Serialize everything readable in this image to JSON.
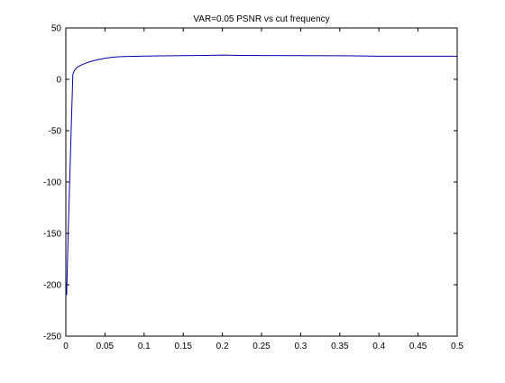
{
  "chart_data": {
    "type": "line",
    "title": "VAR=0.05 PSNR vs cut frequency",
    "xlabel": "",
    "ylabel": "",
    "xlim": [
      0,
      0.5
    ],
    "ylim": [
      -250,
      50
    ],
    "x_ticks": [
      0,
      0.05,
      0.1,
      0.15,
      0.2,
      0.25,
      0.3,
      0.35,
      0.4,
      0.45,
      0.5
    ],
    "x_tick_labels": [
      "0",
      "0.05",
      "0.1",
      "0.15",
      "0.2",
      "0.25",
      "0.3",
      "0.35",
      "0.4",
      "0.45",
      "0.5"
    ],
    "y_ticks": [
      -250,
      -200,
      -150,
      -100,
      -50,
      0,
      50
    ],
    "y_tick_labels": [
      "-250",
      "-200",
      "-150",
      "-100",
      "-50",
      "0",
      "50"
    ],
    "grid": false,
    "legend": "none",
    "series": [
      {
        "color": "#0000aa",
        "x": [
          0.001,
          0.003,
          0.005,
          0.007,
          0.009,
          0.011,
          0.013,
          0.015,
          0.02,
          0.025,
          0.03,
          0.035,
          0.04,
          0.05,
          0.06,
          0.07,
          0.08,
          0.1,
          0.12,
          0.15,
          0.18,
          0.2,
          0.22,
          0.25,
          0.3,
          0.35,
          0.37,
          0.4,
          0.45,
          0.5
        ],
        "y": [
          -210,
          -150,
          -97,
          -45,
          5,
          8.5,
          10.5,
          12,
          14,
          15.5,
          17,
          18,
          19,
          20.5,
          21.5,
          22,
          22.3,
          22.6,
          22.8,
          23,
          23.2,
          23.6,
          23.3,
          23.1,
          23,
          22.9,
          22.8,
          22.5,
          22.5,
          22.5
        ]
      }
    ]
  }
}
